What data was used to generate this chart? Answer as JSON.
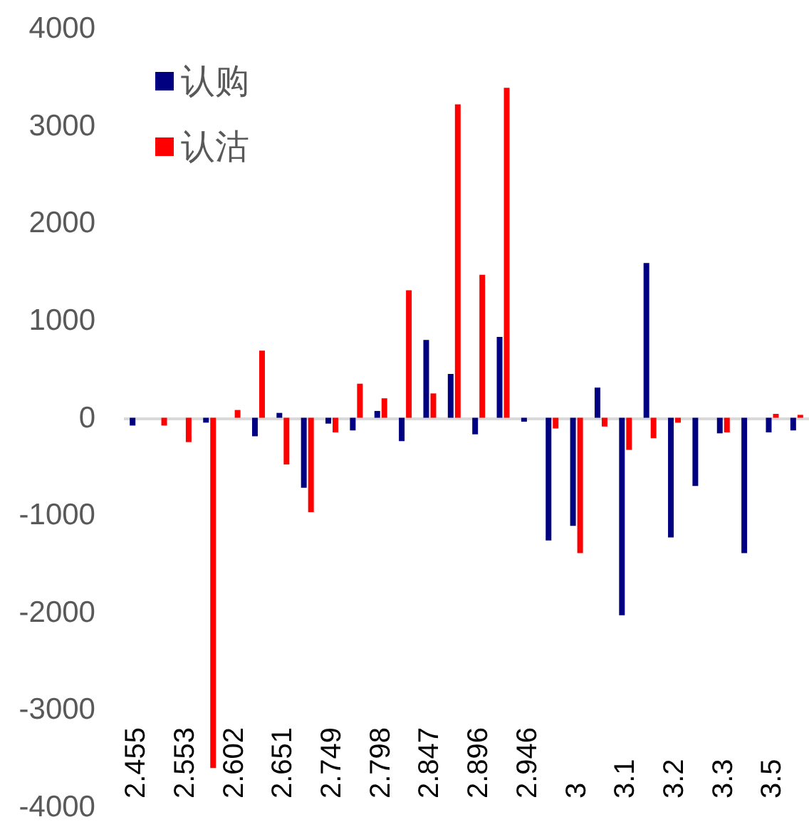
{
  "chart_data": {
    "type": "bar",
    "categories": [
      "2.455",
      null,
      "2.553",
      null,
      "2.602",
      null,
      "2.651",
      null,
      "2.749",
      null,
      "2.798",
      null,
      "2.847",
      null,
      "2.896",
      null,
      "2.946",
      null,
      "3",
      null,
      "3.1",
      null,
      "3.2",
      null,
      "3.3",
      null,
      "3.5",
      null
    ],
    "series": [
      {
        "name": "认购",
        "color": "#000080",
        "values": [
          -80,
          null,
          null,
          -50,
          null,
          -190,
          50,
          -720,
          -60,
          -130,
          70,
          -240,
          800,
          450,
          -170,
          830,
          -40,
          -1260,
          -1110,
          310,
          -2030,
          1590,
          -1230,
          -700,
          -160,
          -1390,
          -150,
          -130
        ]
      },
      {
        "name": "认沽",
        "color": "#ff0000",
        "values": [
          null,
          -80,
          -250,
          -3600,
          80,
          690,
          -480,
          -970,
          -150,
          350,
          200,
          1310,
          250,
          3220,
          1470,
          3390,
          null,
          -110,
          -1390,
          -90,
          -330,
          -210,
          -50,
          null,
          -150,
          null,
          40,
          30
        ]
      }
    ],
    "ylim": [
      -4000,
      4000
    ],
    "yticks": [
      -4000,
      -3000,
      -2000,
      -1000,
      0,
      1000,
      2000,
      3000,
      4000
    ],
    "ref_lines": [
      {
        "axis": "y",
        "value": 0,
        "color": "#d9d9d9"
      }
    ],
    "legend": "top left",
    "grid": false
  }
}
